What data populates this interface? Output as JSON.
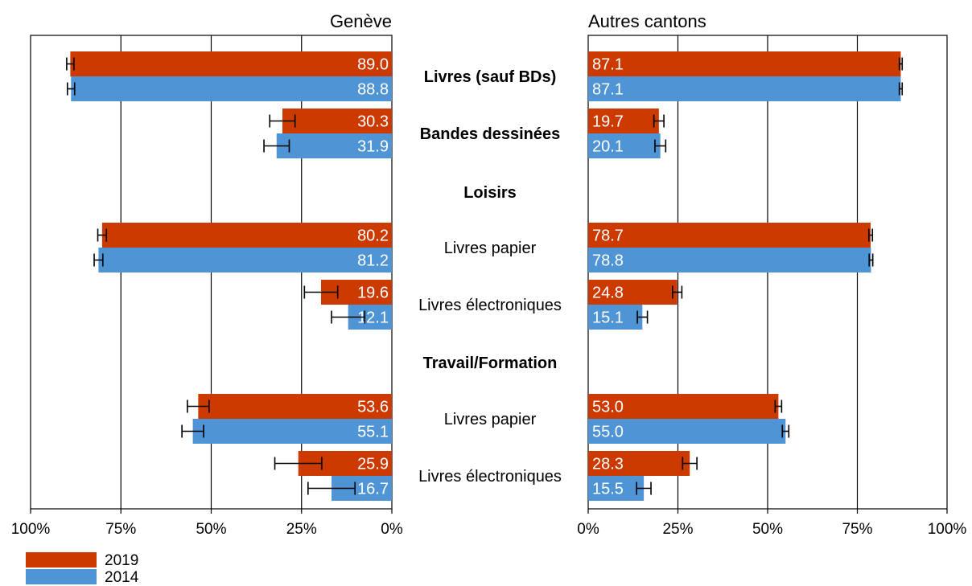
{
  "chart_data": {
    "type": "bar",
    "orientation": "horizontal",
    "layout": "butterfly",
    "panels": [
      {
        "title": "Genève",
        "direction": "left"
      },
      {
        "title": "Autres cantons",
        "direction": "right"
      }
    ],
    "xlim": [
      0,
      100
    ],
    "tick_values": [
      0,
      25,
      50,
      75,
      100
    ],
    "tick_labels_left": [
      "100%",
      "75%",
      "50%",
      "25%",
      "0%"
    ],
    "tick_labels_right": [
      "0%",
      "25%",
      "50%",
      "75%",
      "100%"
    ],
    "grid": true,
    "colors": {
      "2019": "#cc3a00",
      "2014": "#4f94d4"
    },
    "legend": {
      "position": "bottom-left",
      "entries": [
        {
          "label": "2019",
          "color": "#cc3a00"
        },
        {
          "label": "2014",
          "color": "#4f94d4"
        }
      ]
    },
    "rows": [
      {
        "label": "Livres (sauf BDs)",
        "bold": true,
        "geneve": {
          "2019": 89.0,
          "2014": 88.8
        },
        "geneve_labels": {
          "2019": "89.0",
          "2014": "88.8"
        },
        "geneve_err": {
          "2019": [
            88.0,
            90.0
          ],
          "2014": [
            87.8,
            89.8
          ]
        },
        "autres": {
          "2019": 87.1,
          "2014": 87.1
        },
        "autres_labels": {
          "2019": "87.1",
          "2014": "87.1"
        },
        "autres_err": {
          "2019": [
            86.7,
            87.5
          ],
          "2014": [
            86.7,
            87.5
          ]
        }
      },
      {
        "label": "Bandes dessinées",
        "bold": true,
        "geneve": {
          "2019": 30.3,
          "2014": 31.9
        },
        "geneve_labels": {
          "2019": "30.3",
          "2014": "31.9"
        },
        "geneve_err": {
          "2019": [
            26.8,
            33.8
          ],
          "2014": [
            28.4,
            35.4
          ]
        },
        "autres": {
          "2019": 19.7,
          "2014": 20.1
        },
        "autres_labels": {
          "2019": "19.7",
          "2014": "20.1"
        },
        "autres_err": {
          "2019": [
            18.3,
            21.1
          ],
          "2014": [
            18.6,
            21.6
          ]
        }
      },
      {
        "label": "Loisirs",
        "bold": true,
        "header": true
      },
      {
        "label": "Livres papier",
        "bold": false,
        "geneve": {
          "2019": 80.2,
          "2014": 81.2
        },
        "geneve_labels": {
          "2019": "80.2",
          "2014": "81.2"
        },
        "geneve_err": {
          "2019": [
            79.0,
            81.4
          ],
          "2014": [
            80.0,
            82.4
          ]
        },
        "autres": {
          "2019": 78.7,
          "2014": 78.8
        },
        "autres_labels": {
          "2019": "78.7",
          "2014": "78.8"
        },
        "autres_err": {
          "2019": [
            78.2,
            79.2
          ],
          "2014": [
            78.3,
            79.3
          ]
        }
      },
      {
        "label": "Livres électroniques",
        "bold": false,
        "geneve": {
          "2019": 19.6,
          "2014": 12.1
        },
        "geneve_labels": {
          "2019": "19.6",
          "2014": "12.1"
        },
        "geneve_err": {
          "2019": [
            15.0,
            24.2
          ],
          "2014": [
            7.5,
            16.7
          ]
        },
        "autres": {
          "2019": 24.8,
          "2014": 15.1
        },
        "autres_labels": {
          "2019": "24.8",
          "2014": "15.1"
        },
        "autres_err": {
          "2019": [
            23.5,
            26.1
          ],
          "2014": [
            13.7,
            16.5
          ]
        }
      },
      {
        "label": "Travail/Formation",
        "bold": true,
        "header": true
      },
      {
        "label": "Livres papier",
        "bold": false,
        "geneve": {
          "2019": 53.6,
          "2014": 55.1
        },
        "geneve_labels": {
          "2019": "53.6",
          "2014": "55.1"
        },
        "geneve_err": {
          "2019": [
            50.6,
            56.6
          ],
          "2014": [
            52.1,
            58.1
          ]
        },
        "autres": {
          "2019": 53.0,
          "2014": 55.0
        },
        "autres_labels": {
          "2019": "53.0",
          "2014": "55.0"
        },
        "autres_err": {
          "2019": [
            52.1,
            53.9
          ],
          "2014": [
            54.1,
            55.9
          ]
        }
      },
      {
        "label": "Livres électroniques",
        "bold": false,
        "geneve": {
          "2019": 25.9,
          "2014": 16.7
        },
        "geneve_labels": {
          "2019": "25.9",
          "2014": "16.7"
        },
        "geneve_err": {
          "2019": [
            19.4,
            32.4
          ],
          "2014": [
            10.2,
            23.2
          ]
        },
        "autres": {
          "2019": 28.3,
          "2014": 15.5
        },
        "autres_labels": {
          "2019": "28.3",
          "2014": "15.5"
        },
        "autres_err": {
          "2019": [
            26.3,
            30.3
          ],
          "2014": [
            13.5,
            17.5
          ]
        }
      }
    ]
  }
}
